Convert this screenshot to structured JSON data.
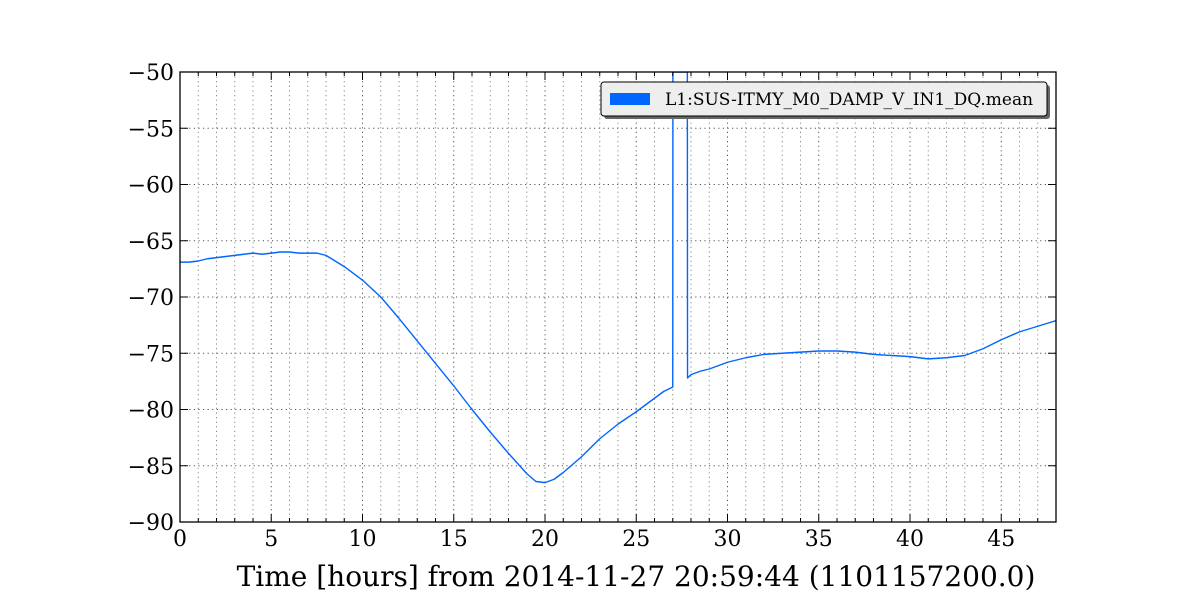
{
  "chart_data": {
    "type": "line",
    "title": "",
    "xlabel": "Time [hours] from 2014-11-27 20:59:44 (1101157200.0)",
    "ylabel": "",
    "xlim": [
      0,
      48
    ],
    "ylim": [
      -90,
      -50
    ],
    "xticks": [
      0,
      5,
      10,
      15,
      20,
      25,
      30,
      35,
      40,
      45
    ],
    "xtick_labels": [
      "0",
      "5",
      "10",
      "15",
      "20",
      "25",
      "30",
      "35",
      "40",
      "45"
    ],
    "yticks": [
      -90,
      -85,
      -80,
      -75,
      -70,
      -65,
      -60,
      -55,
      -50
    ],
    "ytick_labels": [
      "−90",
      "−85",
      "−80",
      "−75",
      "−70",
      "−65",
      "−60",
      "−55",
      "−50"
    ],
    "xminor_step": 1,
    "grid": true,
    "legend_position": "top-right",
    "series": [
      {
        "name": "L1:SUS-ITMY_M0_DAMP_V_IN1_DQ.mean",
        "color": "#0066ff",
        "x": [
          0,
          0.5,
          1,
          1.5,
          2,
          2.5,
          3,
          3.5,
          4,
          4.5,
          5,
          5.5,
          6,
          6.5,
          7,
          7.5,
          8,
          8.5,
          9,
          10,
          11,
          12,
          13,
          14,
          15,
          16,
          17,
          18,
          19,
          19.5,
          20,
          20.5,
          21,
          22,
          23,
          24,
          25,
          26,
          26.5,
          27,
          27.01,
          27.5,
          27.8,
          27.81,
          28,
          28.5,
          29,
          29.5,
          30,
          31,
          32,
          33,
          34,
          35,
          36,
          37,
          38,
          39,
          40,
          41,
          42,
          43,
          44,
          45,
          46,
          47,
          48
        ],
        "y": [
          -66.9,
          -66.9,
          -66.8,
          -66.6,
          -66.5,
          -66.4,
          -66.3,
          -66.2,
          -66.1,
          -66.2,
          -66.1,
          -66.0,
          -66.0,
          -66.1,
          -66.1,
          -66.1,
          -66.3,
          -66.8,
          -67.3,
          -68.5,
          -70.0,
          -71.9,
          -73.9,
          -75.9,
          -77.9,
          -80.0,
          -82.0,
          -83.9,
          -85.7,
          -86.4,
          -86.5,
          -86.2,
          -85.6,
          -84.2,
          -82.6,
          -81.3,
          -80.2,
          -79.0,
          -78.4,
          -78.0,
          -50.0,
          -50.0,
          -50.0,
          -77.2,
          -76.9,
          -76.6,
          -76.4,
          -76.1,
          -75.8,
          -75.4,
          -75.1,
          -75.0,
          -74.9,
          -74.8,
          -74.8,
          -74.9,
          -75.1,
          -75.2,
          -75.3,
          -75.5,
          -75.4,
          -75.2,
          -74.6,
          -73.8,
          -73.1,
          -72.6,
          -72.1
        ]
      }
    ]
  }
}
